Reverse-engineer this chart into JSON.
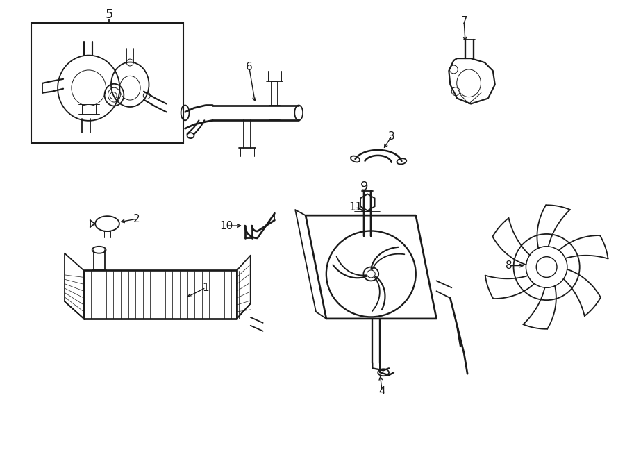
{
  "background_color": "#ffffff",
  "line_color": "#1a1a1a",
  "figsize": [
    9.0,
    6.61
  ],
  "dpi": 100,
  "lw_main": 1.3,
  "lw_thin": 0.7,
  "lw_thick": 2.0
}
